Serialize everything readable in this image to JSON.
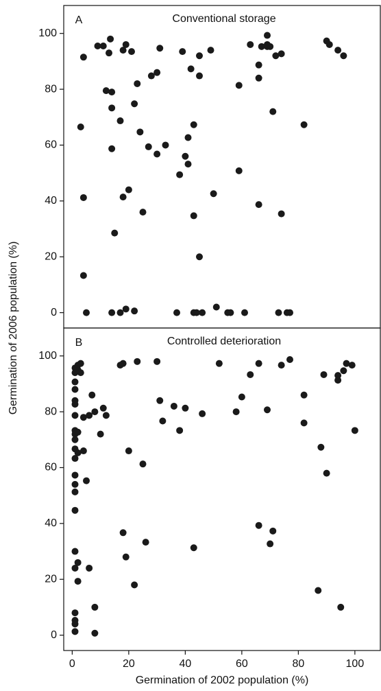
{
  "chart_data": [
    {
      "type": "scatter",
      "panel_label": "A",
      "title": "Conventional storage",
      "y_label": "Germination of 2006 population (%)",
      "color": "#1a1a1a",
      "xlim": [
        -3,
        109
      ],
      "ylim": [
        -5.5,
        110
      ],
      "yticks": [
        0,
        20,
        40,
        60,
        80,
        100
      ],
      "x": [
        3,
        4,
        4,
        4,
        5,
        9,
        11,
        12,
        13,
        13.5,
        14,
        14,
        14,
        14,
        15,
        17,
        17,
        18,
        18,
        19,
        19,
        20,
        21,
        22,
        22,
        23,
        24,
        25,
        27,
        28,
        30,
        30,
        31,
        33,
        37,
        38,
        39,
        40,
        41,
        41,
        42,
        43,
        43,
        43,
        44,
        45,
        45,
        45,
        46,
        49,
        50,
        51,
        55,
        56,
        59,
        59,
        61,
        63,
        66,
        66,
        66,
        67,
        69,
        69,
        69,
        70,
        71,
        72,
        73,
        74,
        74,
        76,
        77,
        82,
        90,
        91,
        94,
        96
      ],
      "values": [
        66.5,
        91.5,
        41.2,
        13.3,
        0,
        95.5,
        95.5,
        79.5,
        93,
        98,
        79,
        73.3,
        58.7,
        0,
        28.5,
        0,
        68.7,
        94,
        41.4,
        96,
        1.3,
        44,
        93.5,
        74.8,
        0.6,
        82,
        64.7,
        36,
        59.4,
        84.8,
        56.8,
        86,
        94.7,
        60,
        0,
        49.4,
        93.5,
        56,
        53.2,
        62.7,
        87.3,
        67.3,
        34.7,
        0,
        0,
        92,
        20,
        84.8,
        0,
        94,
        42.6,
        2,
        0,
        0,
        81.4,
        50.8,
        0,
        96,
        88.7,
        84,
        38.7,
        95.3,
        99.3,
        95.3,
        96,
        95.3,
        72,
        92,
        0,
        92.7,
        35.4,
        0,
        0,
        67.3,
        97.3,
        96,
        94,
        92
      ]
    },
    {
      "type": "scatter",
      "panel_label": "B",
      "title": "Controlled deterioration",
      "x_label": "Germination of 2002 population (%)",
      "color": "#1a1a1a",
      "xlim": [
        -3,
        109
      ],
      "ylim": [
        -5.5,
        110
      ],
      "xticks": [
        0,
        20,
        40,
        60,
        80,
        100
      ],
      "yticks": [
        0,
        20,
        40,
        60,
        80,
        100
      ],
      "x": [
        1,
        1,
        1,
        1,
        1,
        1,
        1,
        1,
        1,
        1,
        1,
        1,
        1,
        1,
        1,
        1,
        1,
        1,
        1,
        1,
        1,
        1,
        2,
        2,
        2,
        2,
        2,
        2,
        3,
        3,
        4,
        4,
        5,
        6,
        6,
        7,
        8,
        8,
        8,
        10,
        11,
        12,
        17,
        18,
        18,
        19,
        20,
        22,
        23,
        25,
        26,
        30,
        31,
        32,
        36,
        38,
        40,
        43,
        46,
        52,
        58,
        60,
        63,
        66,
        66,
        69,
        70,
        71,
        74,
        77,
        82,
        82,
        87,
        88,
        89,
        90,
        94,
        94,
        95,
        96,
        97,
        99,
        100
      ],
      "values": [
        95.7,
        94,
        90.7,
        88,
        84,
        82.7,
        78.7,
        73.3,
        72,
        70,
        66.7,
        63.3,
        57.3,
        54,
        51.3,
        44.7,
        30,
        24,
        8,
        5.3,
        4,
        1.3,
        96.7,
        95,
        72.7,
        65.3,
        26,
        19.3,
        97.3,
        94,
        78,
        66,
        55.3,
        78.7,
        24,
        86,
        10,
        0.7,
        80,
        72,
        81.3,
        78.7,
        96.7,
        97.3,
        36.7,
        28,
        66,
        18,
        98,
        61.3,
        33.3,
        98,
        84,
        76.7,
        82,
        73.3,
        81.3,
        31.3,
        79.3,
        97.3,
        80,
        85.3,
        93.3,
        97.3,
        39.3,
        80.7,
        32.7,
        37.3,
        96.7,
        98.7,
        86,
        76,
        16,
        67.3,
        93.3,
        58,
        93,
        91.3,
        10,
        94.7,
        97.3,
        96.7,
        73.3
      ]
    }
  ]
}
